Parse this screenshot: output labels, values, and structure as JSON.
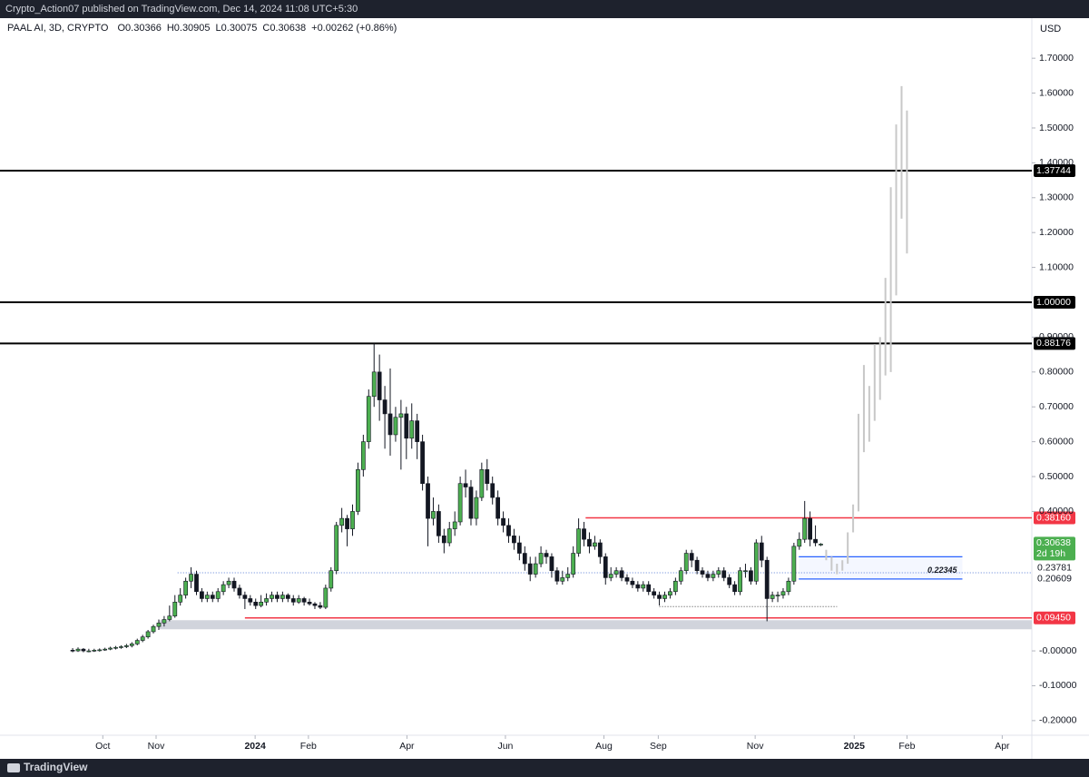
{
  "header": {
    "published": "Crypto_Action07 published on TradingView.com, Dec 14, 2024 11:08 UTC+5:30"
  },
  "footer": {
    "brand": "TradingView"
  },
  "chart_data": {
    "type": "candlestick",
    "symbol": "PAAL AI, 3D, CRYPTO",
    "ohlc_prefixes": [
      "O",
      "H",
      "L",
      "C"
    ],
    "change": "+0.00262 (+0.86%)",
    "currency": "USD",
    "colors": {
      "up": "#4caf50",
      "down": "#131722",
      "outline": "#131722"
    },
    "xlim": [
      -13.5,
      178.2
    ],
    "ylim": [
      -0.242,
      1.815
    ],
    "xticks": [
      {
        "value": 5.6,
        "label": "Oct"
      },
      {
        "value": 15.5,
        "label": "Nov"
      },
      {
        "value": 33.9,
        "label": "2024",
        "major": true
      },
      {
        "value": 43.8,
        "label": "Feb"
      },
      {
        "value": 62.1,
        "label": "Apr"
      },
      {
        "value": 80.4,
        "label": "Jun"
      },
      {
        "value": 98.7,
        "label": "Aug"
      },
      {
        "value": 108.8,
        "label": "Sep"
      },
      {
        "value": 126.8,
        "label": "Nov"
      },
      {
        "value": 145.2,
        "label": "2025",
        "major": true
      },
      {
        "value": 155,
        "label": "Feb"
      },
      {
        "value": 172.7,
        "label": "Apr"
      }
    ],
    "yticks": [
      {
        "value": 1.7,
        "label": "1.70000"
      },
      {
        "value": 1.6,
        "label": "1.60000"
      },
      {
        "value": 1.5,
        "label": "1.50000"
      },
      {
        "value": 1.4,
        "label": "1.40000"
      },
      {
        "value": 1.3,
        "label": "1.30000"
      },
      {
        "value": 1.2,
        "label": "1.20000"
      },
      {
        "value": 1.1,
        "label": "1.10000"
      },
      {
        "value": 0.9,
        "label": "0.90000"
      },
      {
        "value": 0.8,
        "label": "0.80000"
      },
      {
        "value": 0.7,
        "label": "0.70000"
      },
      {
        "value": 0.6,
        "label": "0.60000"
      },
      {
        "value": 0.5,
        "label": "0.50000"
      },
      {
        "value": 0.4,
        "label": "0.40000"
      },
      {
        "value": 0,
        "label": "-0.00000"
      },
      {
        "value": -0.1,
        "label": "-0.10000"
      },
      {
        "value": -0.2,
        "label": "-0.20000"
      }
    ],
    "candles": [
      [
        0.002,
        0.008,
        -0.004,
        0.0
      ],
      [
        0.0,
        0.01,
        -0.003,
        0.005
      ],
      [
        0.005,
        0.008,
        -0.004,
        0.0
      ],
      [
        0.0,
        0.006,
        -0.004,
        0.0
      ],
      [
        0.0,
        0.006,
        -0.003,
        0.002
      ],
      [
        0.002,
        0.007,
        -0.002,
        0.003
      ],
      [
        0.003,
        0.009,
        0.0,
        0.005
      ],
      [
        0.005,
        0.012,
        0.002,
        0.008
      ],
      [
        0.008,
        0.014,
        0.004,
        0.01
      ],
      [
        0.01,
        0.016,
        0.006,
        0.012
      ],
      [
        0.012,
        0.02,
        0.008,
        0.015
      ],
      [
        0.015,
        0.025,
        0.01,
        0.02
      ],
      [
        0.02,
        0.035,
        0.016,
        0.03
      ],
      [
        0.03,
        0.046,
        0.025,
        0.04
      ],
      [
        0.04,
        0.06,
        0.035,
        0.055
      ],
      [
        0.055,
        0.075,
        0.05,
        0.07
      ],
      [
        0.07,
        0.09,
        0.06,
        0.08
      ],
      [
        0.08,
        0.1,
        0.07,
        0.09
      ],
      [
        0.09,
        0.13,
        0.085,
        0.1
      ],
      [
        0.1,
        0.16,
        0.095,
        0.14
      ],
      [
        0.14,
        0.18,
        0.13,
        0.16
      ],
      [
        0.16,
        0.21,
        0.15,
        0.2
      ],
      [
        0.2,
        0.24,
        0.18,
        0.22
      ],
      [
        0.22,
        0.23,
        0.16,
        0.17
      ],
      [
        0.17,
        0.18,
        0.14,
        0.15
      ],
      [
        0.15,
        0.17,
        0.14,
        0.16
      ],
      [
        0.16,
        0.17,
        0.14,
        0.15
      ],
      [
        0.15,
        0.18,
        0.14,
        0.17
      ],
      [
        0.17,
        0.2,
        0.16,
        0.19
      ],
      [
        0.19,
        0.21,
        0.18,
        0.2
      ],
      [
        0.2,
        0.21,
        0.17,
        0.18
      ],
      [
        0.18,
        0.19,
        0.15,
        0.16
      ],
      [
        0.16,
        0.17,
        0.12,
        0.15
      ],
      [
        0.15,
        0.16,
        0.13,
        0.14
      ],
      [
        0.14,
        0.15,
        0.12,
        0.13
      ],
      [
        0.13,
        0.16,
        0.125,
        0.14
      ],
      [
        0.14,
        0.165,
        0.13,
        0.15
      ],
      [
        0.15,
        0.17,
        0.14,
        0.16
      ],
      [
        0.16,
        0.17,
        0.14,
        0.15
      ],
      [
        0.15,
        0.17,
        0.14,
        0.16
      ],
      [
        0.16,
        0.165,
        0.14,
        0.15
      ],
      [
        0.15,
        0.16,
        0.13,
        0.14
      ],
      [
        0.14,
        0.16,
        0.135,
        0.15
      ],
      [
        0.15,
        0.155,
        0.13,
        0.14
      ],
      [
        0.14,
        0.15,
        0.13,
        0.135
      ],
      [
        0.135,
        0.14,
        0.12,
        0.13
      ],
      [
        0.13,
        0.14,
        0.12,
        0.125
      ],
      [
        0.125,
        0.19,
        0.12,
        0.18
      ],
      [
        0.18,
        0.24,
        0.17,
        0.23
      ],
      [
        0.23,
        0.37,
        0.22,
        0.36
      ],
      [
        0.36,
        0.41,
        0.34,
        0.38
      ],
      [
        0.38,
        0.39,
        0.3,
        0.35
      ],
      [
        0.35,
        0.42,
        0.33,
        0.4
      ],
      [
        0.4,
        0.54,
        0.39,
        0.52
      ],
      [
        0.52,
        0.62,
        0.5,
        0.6
      ],
      [
        0.6,
        0.75,
        0.58,
        0.73
      ],
      [
        0.73,
        0.88176,
        0.7,
        0.8
      ],
      [
        0.8,
        0.85,
        0.66,
        0.72
      ],
      [
        0.72,
        0.76,
        0.58,
        0.68
      ],
      [
        0.68,
        0.81,
        0.56,
        0.62
      ],
      [
        0.62,
        0.7,
        0.6,
        0.67
      ],
      [
        0.67,
        0.72,
        0.52,
        0.68
      ],
      [
        0.68,
        0.7,
        0.55,
        0.61
      ],
      [
        0.61,
        0.71,
        0.58,
        0.66
      ],
      [
        0.66,
        0.68,
        0.55,
        0.6
      ],
      [
        0.6,
        0.62,
        0.46,
        0.48
      ],
      [
        0.48,
        0.5,
        0.3,
        0.38
      ],
      [
        0.38,
        0.44,
        0.36,
        0.4
      ],
      [
        0.4,
        0.42,
        0.31,
        0.33
      ],
      [
        0.33,
        0.35,
        0.28,
        0.31
      ],
      [
        0.31,
        0.37,
        0.3,
        0.35
      ],
      [
        0.35,
        0.4,
        0.33,
        0.37
      ],
      [
        0.37,
        0.5,
        0.36,
        0.48
      ],
      [
        0.48,
        0.52,
        0.44,
        0.47
      ],
      [
        0.47,
        0.49,
        0.36,
        0.38
      ],
      [
        0.38,
        0.46,
        0.36,
        0.44
      ],
      [
        0.44,
        0.54,
        0.43,
        0.52
      ],
      [
        0.52,
        0.55,
        0.46,
        0.48
      ],
      [
        0.48,
        0.5,
        0.42,
        0.44
      ],
      [
        0.44,
        0.46,
        0.36,
        0.38
      ],
      [
        0.38,
        0.4,
        0.34,
        0.36
      ],
      [
        0.36,
        0.38,
        0.31,
        0.33
      ],
      [
        0.33,
        0.35,
        0.29,
        0.31
      ],
      [
        0.31,
        0.33,
        0.26,
        0.28
      ],
      [
        0.28,
        0.3,
        0.23,
        0.25
      ],
      [
        0.25,
        0.27,
        0.2,
        0.22
      ],
      [
        0.22,
        0.27,
        0.21,
        0.25
      ],
      [
        0.25,
        0.3,
        0.24,
        0.28
      ],
      [
        0.28,
        0.29,
        0.25,
        0.27
      ],
      [
        0.27,
        0.28,
        0.21,
        0.23
      ],
      [
        0.23,
        0.24,
        0.19,
        0.2
      ],
      [
        0.2,
        0.23,
        0.19,
        0.21
      ],
      [
        0.21,
        0.24,
        0.2,
        0.22
      ],
      [
        0.22,
        0.3,
        0.21,
        0.28
      ],
      [
        0.28,
        0.38,
        0.27,
        0.35
      ],
      [
        0.35,
        0.37,
        0.3,
        0.32
      ],
      [
        0.32,
        0.34,
        0.28,
        0.3
      ],
      [
        0.3,
        0.33,
        0.29,
        0.31
      ],
      [
        0.31,
        0.32,
        0.25,
        0.27
      ],
      [
        0.27,
        0.28,
        0.19,
        0.21
      ],
      [
        0.21,
        0.24,
        0.2,
        0.22
      ],
      [
        0.22,
        0.24,
        0.21,
        0.23
      ],
      [
        0.23,
        0.24,
        0.2,
        0.21
      ],
      [
        0.21,
        0.22,
        0.19,
        0.2
      ],
      [
        0.2,
        0.21,
        0.18,
        0.19
      ],
      [
        0.19,
        0.2,
        0.17,
        0.18
      ],
      [
        0.18,
        0.2,
        0.17,
        0.19
      ],
      [
        0.19,
        0.2,
        0.16,
        0.17
      ],
      [
        0.17,
        0.18,
        0.15,
        0.16
      ],
      [
        0.16,
        0.17,
        0.13,
        0.15
      ],
      [
        0.15,
        0.17,
        0.14,
        0.16
      ],
      [
        0.16,
        0.18,
        0.15,
        0.17
      ],
      [
        0.17,
        0.21,
        0.16,
        0.2
      ],
      [
        0.2,
        0.24,
        0.19,
        0.23
      ],
      [
        0.23,
        0.29,
        0.22,
        0.28
      ],
      [
        0.28,
        0.29,
        0.24,
        0.26
      ],
      [
        0.26,
        0.27,
        0.22,
        0.23
      ],
      [
        0.23,
        0.24,
        0.21,
        0.22
      ],
      [
        0.22,
        0.23,
        0.2,
        0.21
      ],
      [
        0.21,
        0.23,
        0.2,
        0.22
      ],
      [
        0.22,
        0.24,
        0.21,
        0.23
      ],
      [
        0.23,
        0.24,
        0.2,
        0.21
      ],
      [
        0.21,
        0.22,
        0.18,
        0.19
      ],
      [
        0.19,
        0.2,
        0.16,
        0.17
      ],
      [
        0.17,
        0.24,
        0.16,
        0.23
      ],
      [
        0.23,
        0.25,
        0.21,
        0.23
      ],
      [
        0.23,
        0.24,
        0.19,
        0.2
      ],
      [
        0.2,
        0.32,
        0.19,
        0.31
      ],
      [
        0.31,
        0.33,
        0.24,
        0.26
      ],
      [
        0.26,
        0.27,
        0.085,
        0.15
      ],
      [
        0.15,
        0.17,
        0.14,
        0.16
      ],
      [
        0.16,
        0.17,
        0.14,
        0.16
      ],
      [
        0.16,
        0.18,
        0.15,
        0.17
      ],
      [
        0.17,
        0.21,
        0.16,
        0.2
      ],
      [
        0.2,
        0.31,
        0.19,
        0.3
      ],
      [
        0.3,
        0.34,
        0.29,
        0.32
      ],
      [
        0.32,
        0.43,
        0.31,
        0.38
      ],
      [
        0.38,
        0.4,
        0.3,
        0.32
      ],
      [
        0.32,
        0.36,
        0.3,
        0.31
      ],
      [
        0.30366,
        0.30905,
        0.30075,
        0.30638
      ]
    ],
    "projection": {
      "color": "#c8c8c8",
      "x": [
        140,
        141,
        142,
        143,
        144,
        145,
        146,
        147,
        148,
        149,
        150,
        151,
        152,
        153,
        154,
        155
      ],
      "ranges": [
        [
          0.26,
          0.29
        ],
        [
          0.23,
          0.27
        ],
        [
          0.22,
          0.25
        ],
        [
          0.23,
          0.26
        ],
        [
          0.25,
          0.34
        ],
        [
          0.34,
          0.42
        ],
        [
          0.4,
          0.68
        ],
        [
          0.57,
          0.82
        ],
        [
          0.6,
          0.76
        ],
        [
          0.66,
          0.88
        ],
        [
          0.72,
          0.9
        ],
        [
          0.79,
          1.07
        ],
        [
          0.8,
          1.33
        ],
        [
          1.02,
          1.51
        ],
        [
          1.24,
          1.62
        ],
        [
          1.14,
          1.55
        ]
      ]
    },
    "levels": [
      {
        "value": 1.37744,
        "from": -13.5,
        "color": "#000000"
      },
      {
        "value": 1,
        "label": "1.00000",
        "from": -13.5,
        "color": "#000000"
      },
      {
        "value": 0.88176,
        "from": -13.5,
        "color": "#000000"
      },
      {
        "value": 0.3816,
        "label": "0.38160",
        "from": 95.3,
        "color": "#f23645"
      },
      {
        "value": 0.0945,
        "label": "0.09450",
        "from": 32,
        "color": "#f23645"
      }
    ],
    "zone": {
      "from": 16,
      "range": [
        0.062,
        0.088
      ],
      "color": "#d1d4dc"
    },
    "box": {
      "from": 134.9,
      "to": 165.3,
      "range": [
        0.20609,
        0.27
      ],
      "label": "0.22345",
      "color": "#2962ff"
    },
    "dotted_lines": [
      {
        "value": 0.224,
        "from": 19.5,
        "color": "#5b7fd6"
      },
      {
        "value": 0.127,
        "from": 109,
        "to": 142,
        "color": "#444444"
      }
    ],
    "axis_tags": [
      0.23781,
      0.20609
    ],
    "price_tag": {
      "color": "#4caf50",
      "countdown": "2d 19h"
    }
  }
}
